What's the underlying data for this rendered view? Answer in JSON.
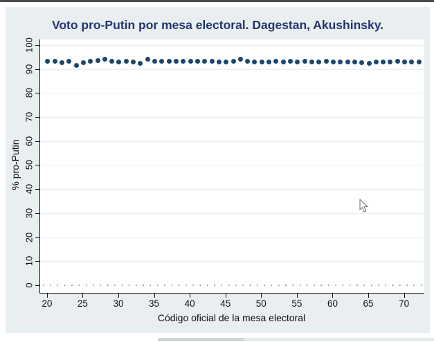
{
  "chart": {
    "title": "Voto pro-Putin por mesa electoral. Dagestan, Akushinsky.",
    "xlabel": "Código oficial de la mesa electoral",
    "ylabel": "% pro-Putin"
  },
  "chart_data": {
    "type": "scatter",
    "title": "Voto pro-Putin por mesa electoral. Dagestan, Akushinsky.",
    "xlabel": "Código oficial de la mesa electoral",
    "ylabel": "% pro-Putin",
    "xlim": [
      18.95,
      72.75
    ],
    "ylim": [
      -3.2,
      102.3
    ],
    "x_ticks": [
      20,
      25,
      30,
      35,
      40,
      45,
      50,
      55,
      60,
      65,
      70
    ],
    "y_ticks": [
      0,
      10,
      20,
      30,
      40,
      50,
      60,
      70,
      80,
      90,
      100
    ],
    "grid": "horizontal, very faint",
    "legend": "none",
    "reference_line": {
      "y": 0,
      "style": "dotted",
      "color": "#8f989d"
    },
    "colors": {
      "marker": "#1a476f",
      "region_background": "#e9eff1",
      "plot_background": "#ffffff",
      "title_color": "#23356b"
    },
    "series": [
      {
        "name": "% pro-Putin",
        "x": [
          20,
          21,
          22,
          23,
          24,
          25,
          26,
          27,
          28,
          29,
          30,
          31,
          32,
          33,
          34,
          35,
          36,
          37,
          38,
          39,
          40,
          41,
          42,
          43,
          44,
          45,
          46,
          47,
          48,
          49,
          50,
          51,
          52,
          53,
          54,
          55,
          56,
          57,
          58,
          59,
          60,
          61,
          62,
          63,
          64,
          65,
          66,
          67,
          68,
          69,
          70,
          71,
          72
        ],
        "y": [
          93.3,
          93.3,
          92.7,
          93.2,
          91.4,
          92.7,
          93.2,
          93.4,
          94.1,
          93.1,
          93.0,
          93.1,
          93.0,
          92.3,
          94.1,
          93.3,
          93.1,
          93.1,
          93.1,
          93.3,
          93.1,
          93.1,
          93.1,
          93.1,
          93.0,
          93.0,
          93.1,
          94.0,
          93.1,
          93.0,
          93.0,
          93.0,
          93.1,
          93.0,
          93.1,
          93.0,
          93.1,
          93.0,
          93.0,
          93.1,
          93.0,
          93.0,
          93.0,
          93.0,
          92.7,
          92.4,
          93.0,
          93.0,
          93.0,
          93.1,
          93.0,
          93.0,
          92.9
        ]
      }
    ]
  }
}
